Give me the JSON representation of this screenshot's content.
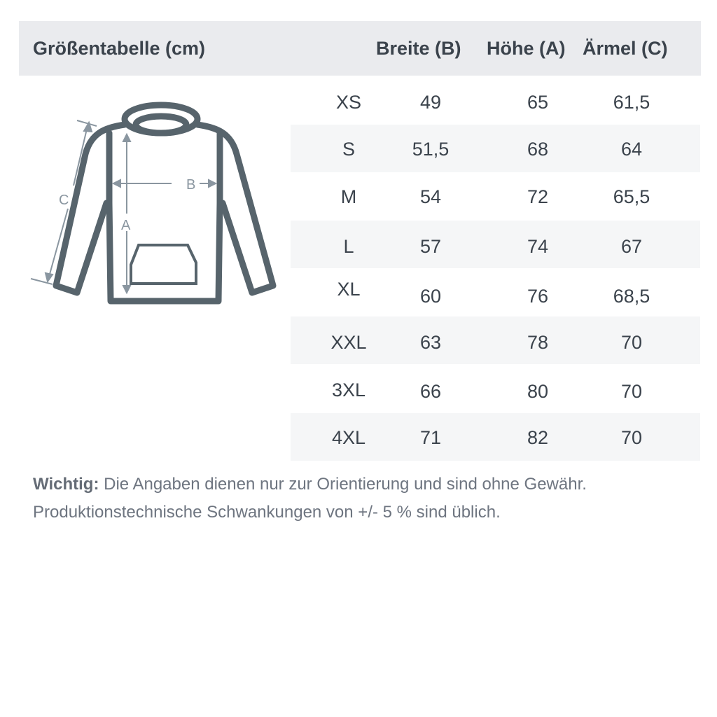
{
  "header": {
    "title": "Größentabelle (cm)",
    "columns": [
      "Breite (B)",
      "Höhe (A)",
      "Ärmel (C)"
    ]
  },
  "diagram": {
    "labels": {
      "width": "B",
      "height": "A",
      "sleeve": "C"
    },
    "stroke_color": "#57646c",
    "arrow_color": "#8a96a0"
  },
  "rows": [
    {
      "size": "XS",
      "b": "49",
      "a": "65",
      "c": "61,5"
    },
    {
      "size": "S",
      "b": "51,5",
      "a": "68",
      "c": "64"
    },
    {
      "size": "M",
      "b": "54",
      "a": "72",
      "c": "65,5"
    },
    {
      "size": "L",
      "b": "57",
      "a": "74",
      "c": "67"
    },
    {
      "size": "XL",
      "b": "60",
      "a": "76",
      "c": "68,5"
    },
    {
      "size": "XXL",
      "b": "63",
      "a": "78",
      "c": "70"
    },
    {
      "size": "3XL",
      "b": "66",
      "a": "80",
      "c": "70"
    },
    {
      "size": "4XL",
      "b": "71",
      "a": "82",
      "c": "70"
    }
  ],
  "note": {
    "label": "Wichtig:",
    "line1": "Die Angaben dienen nur zur Orientierung und sind ohne Gewähr.",
    "line2": "Produktionstechnische Schwankungen von +/- 5 % sind üblich."
  }
}
